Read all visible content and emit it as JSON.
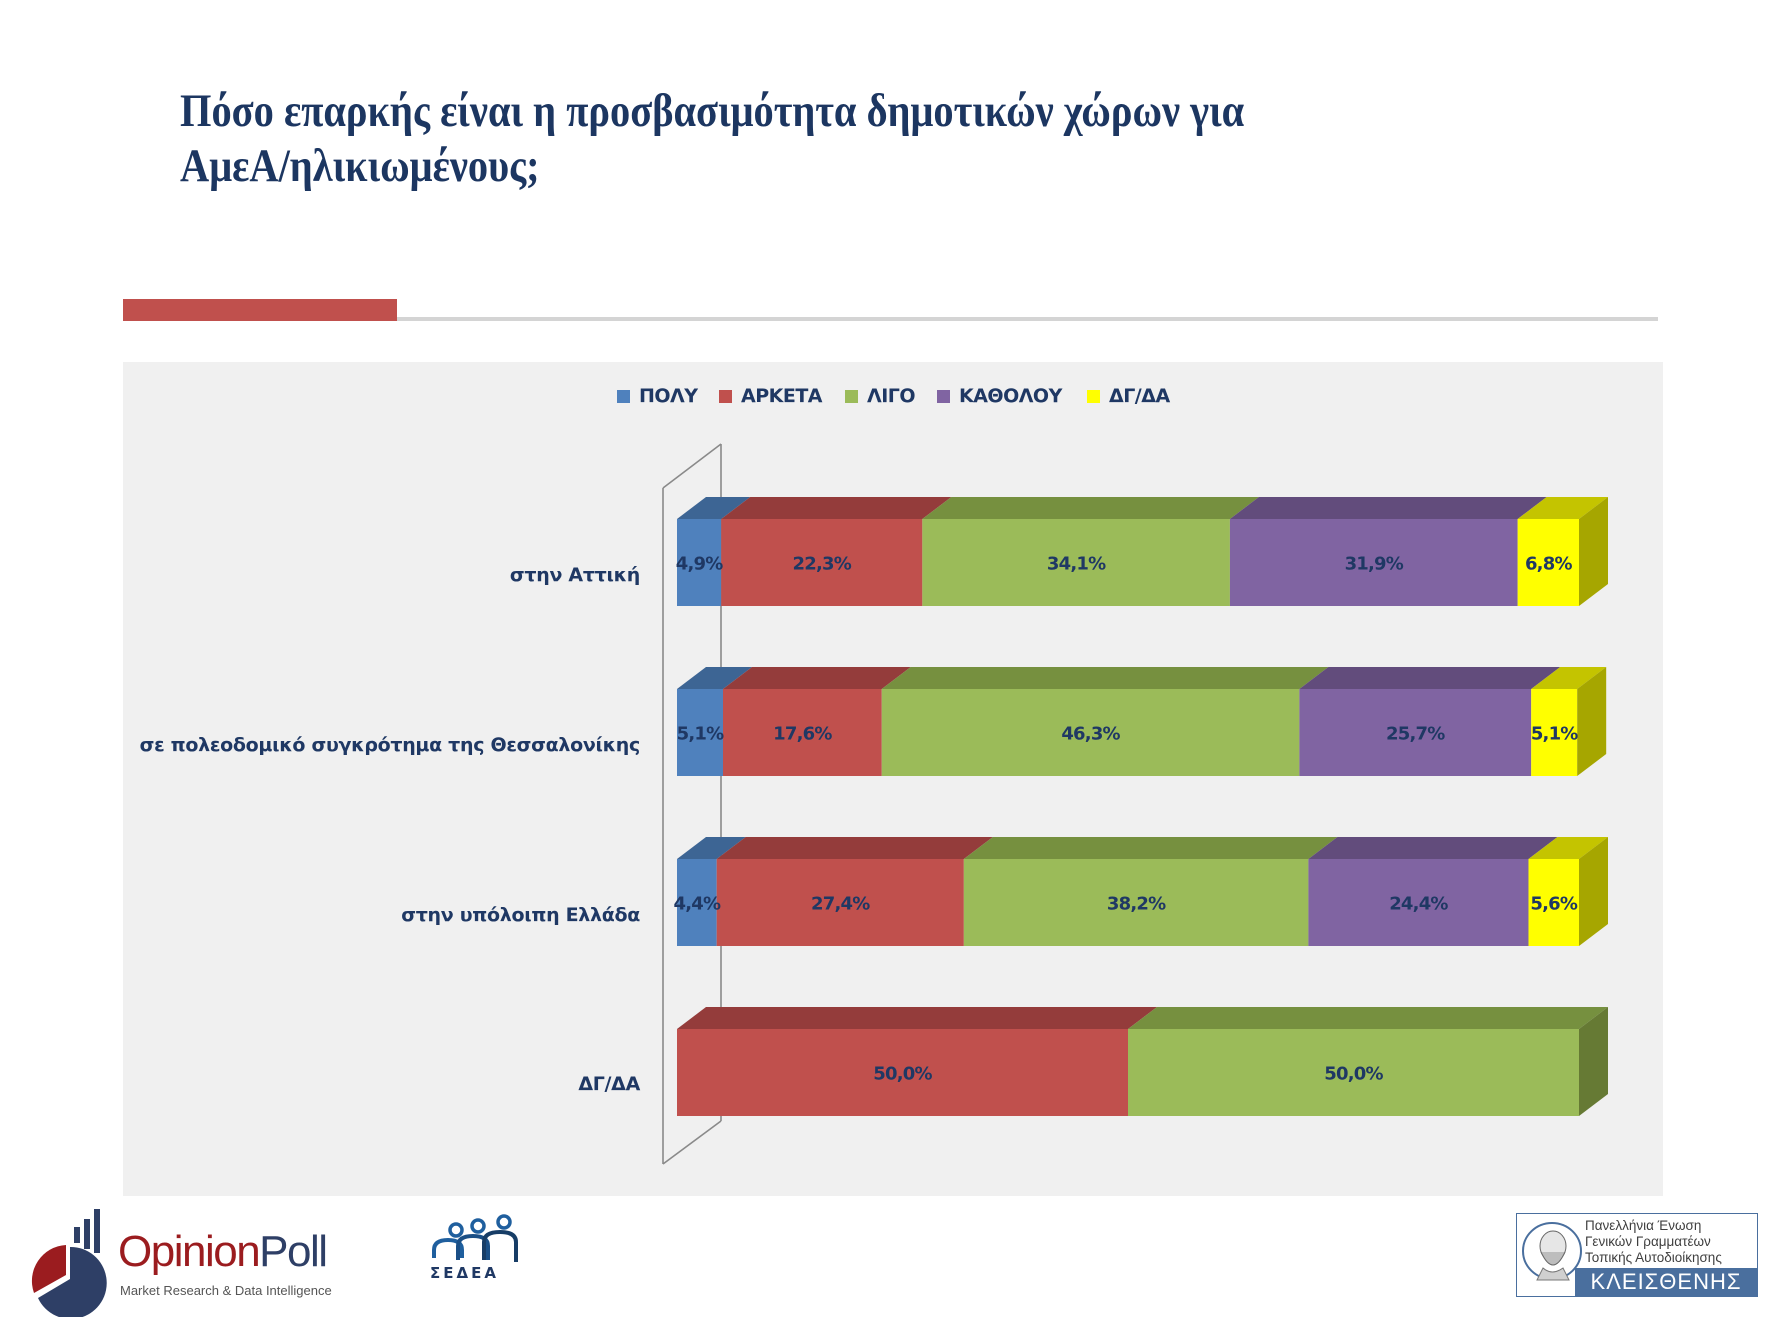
{
  "title": {
    "line1": "Πόσο επαρκής είναι η προσβασιμότητα δημοτικών χώρων για",
    "line2": "ΑμεΑ/ηλικιωμένους;"
  },
  "colors": {
    "title": "#1c3661",
    "accent": "#c0504d",
    "panel": "#f0f0f0",
    "label_text": "#1f3864"
  },
  "chart_data": {
    "type": "bar",
    "orientation": "horizontal",
    "stacked": "100%",
    "style": "3d",
    "title": "",
    "xlabel": "",
    "ylabel": "",
    "xlim": [
      0,
      100
    ],
    "grid": false,
    "legend_position": "top",
    "categories": [
      "στην Αττική",
      "σε πολεοδομικό συγκρότημα της Θεσσαλονίκης",
      "στην υπόλοιπη Ελλάδα",
      "ΔΓ/ΔΑ"
    ],
    "series": [
      {
        "name": "ΠΟΛΥ",
        "color": "#4f81bd",
        "top": "#3d6594",
        "side": "#3a6290",
        "values": [
          4.9,
          5.1,
          4.4,
          0
        ],
        "labels": [
          "4,9%",
          "5,1%",
          "4,4%",
          ""
        ]
      },
      {
        "name": "ΑΡΚΕΤΑ",
        "color": "#c0504d",
        "top": "#943c3b",
        "side": "#8f3b39",
        "values": [
          22.3,
          17.6,
          27.4,
          50.0
        ],
        "labels": [
          "22,3%",
          "17,6%",
          "27,4%",
          "50,0%"
        ]
      },
      {
        "name": "ΛΙΓΟ",
        "color": "#9bbb59",
        "top": "#76903f",
        "side": "#667a34",
        "values": [
          34.1,
          46.3,
          38.2,
          50.0
        ],
        "labels": [
          "34,1%",
          "46,3%",
          "38,2%",
          "50,0%"
        ]
      },
      {
        "name": "ΚΑΘΟΛΟΥ",
        "color": "#8064a2",
        "top": "#624c7c",
        "side": "#5a466f",
        "values": [
          31.9,
          25.7,
          24.4,
          0
        ],
        "labels": [
          "31,9%",
          "25,7%",
          "24,4%",
          ""
        ]
      },
      {
        "name": "ΔΓ/ΔΑ",
        "color": "#ffff00",
        "top": "#c4c400",
        "side": "#a6a600",
        "values": [
          6.8,
          5.1,
          5.6,
          0
        ],
        "labels": [
          "6,8%",
          "5,1%",
          "5,6%",
          ""
        ]
      }
    ]
  },
  "logos": {
    "opinionpoll": {
      "name_part1": "Opinion",
      "name_part2": "Poll",
      "tagline": "Market Research & Data Intelligence"
    },
    "sedea": {
      "text": "ΣΕΔΕΑ"
    },
    "kleisthenis": {
      "line1": "Πανελλήνια Ένωση",
      "line2": "Γενικών Γραμματέων",
      "line3": "Τοπικής Αυτοδιοίκησης",
      "name": "ΚΛΕΙΣΘΕΝΗΣ"
    }
  }
}
